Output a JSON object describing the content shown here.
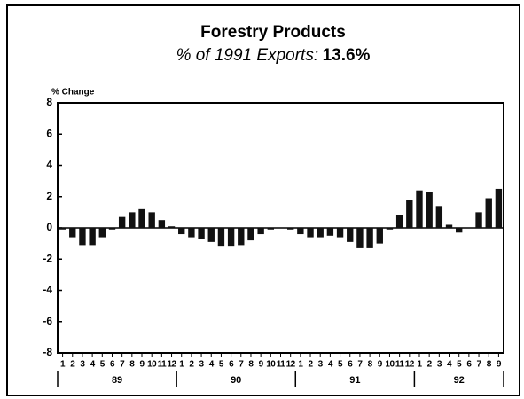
{
  "chart_data": {
    "type": "bar",
    "title": "Forestry Products",
    "subtitle": "% of 1991 Exports:",
    "subtitle_value": "13.6%",
    "y_label": "% Change",
    "categories": [
      "1",
      "2",
      "3",
      "4",
      "5",
      "6",
      "7",
      "8",
      "9",
      "10",
      "11",
      "12",
      "1",
      "2",
      "3",
      "4",
      "5",
      "6",
      "7",
      "8",
      "9",
      "10",
      "11",
      "12",
      "1",
      "2",
      "3",
      "4",
      "5",
      "6",
      "7",
      "8",
      "9",
      "10",
      "11",
      "12",
      "1",
      "2",
      "3",
      "4",
      "5",
      "6",
      "7",
      "8",
      "9"
    ],
    "x_groups": [
      "89",
      "90",
      "91",
      "92"
    ],
    "values": [
      -0.1,
      -0.6,
      -1.1,
      -1.1,
      -0.6,
      -0.1,
      0.7,
      1.0,
      1.2,
      1.0,
      0.5,
      0.1,
      -0.4,
      -0.6,
      -0.7,
      -0.9,
      -1.2,
      -1.2,
      -1.1,
      -0.8,
      -0.4,
      -0.1,
      0,
      -0.1,
      -0.4,
      -0.6,
      -0.6,
      -0.5,
      -0.6,
      -0.9,
      -1.3,
      -1.3,
      -1.0,
      -0.1,
      0.8,
      1.8,
      2.4,
      2.3,
      1.4,
      0.2,
      -0.3,
      0,
      1.0,
      1.9,
      2.5
    ],
    "color": "#111111",
    "ylim": [
      -8,
      8
    ],
    "yticks": [
      -8,
      -6,
      -4,
      -2,
      0,
      2,
      4,
      6,
      8
    ],
    "grid": false
  }
}
